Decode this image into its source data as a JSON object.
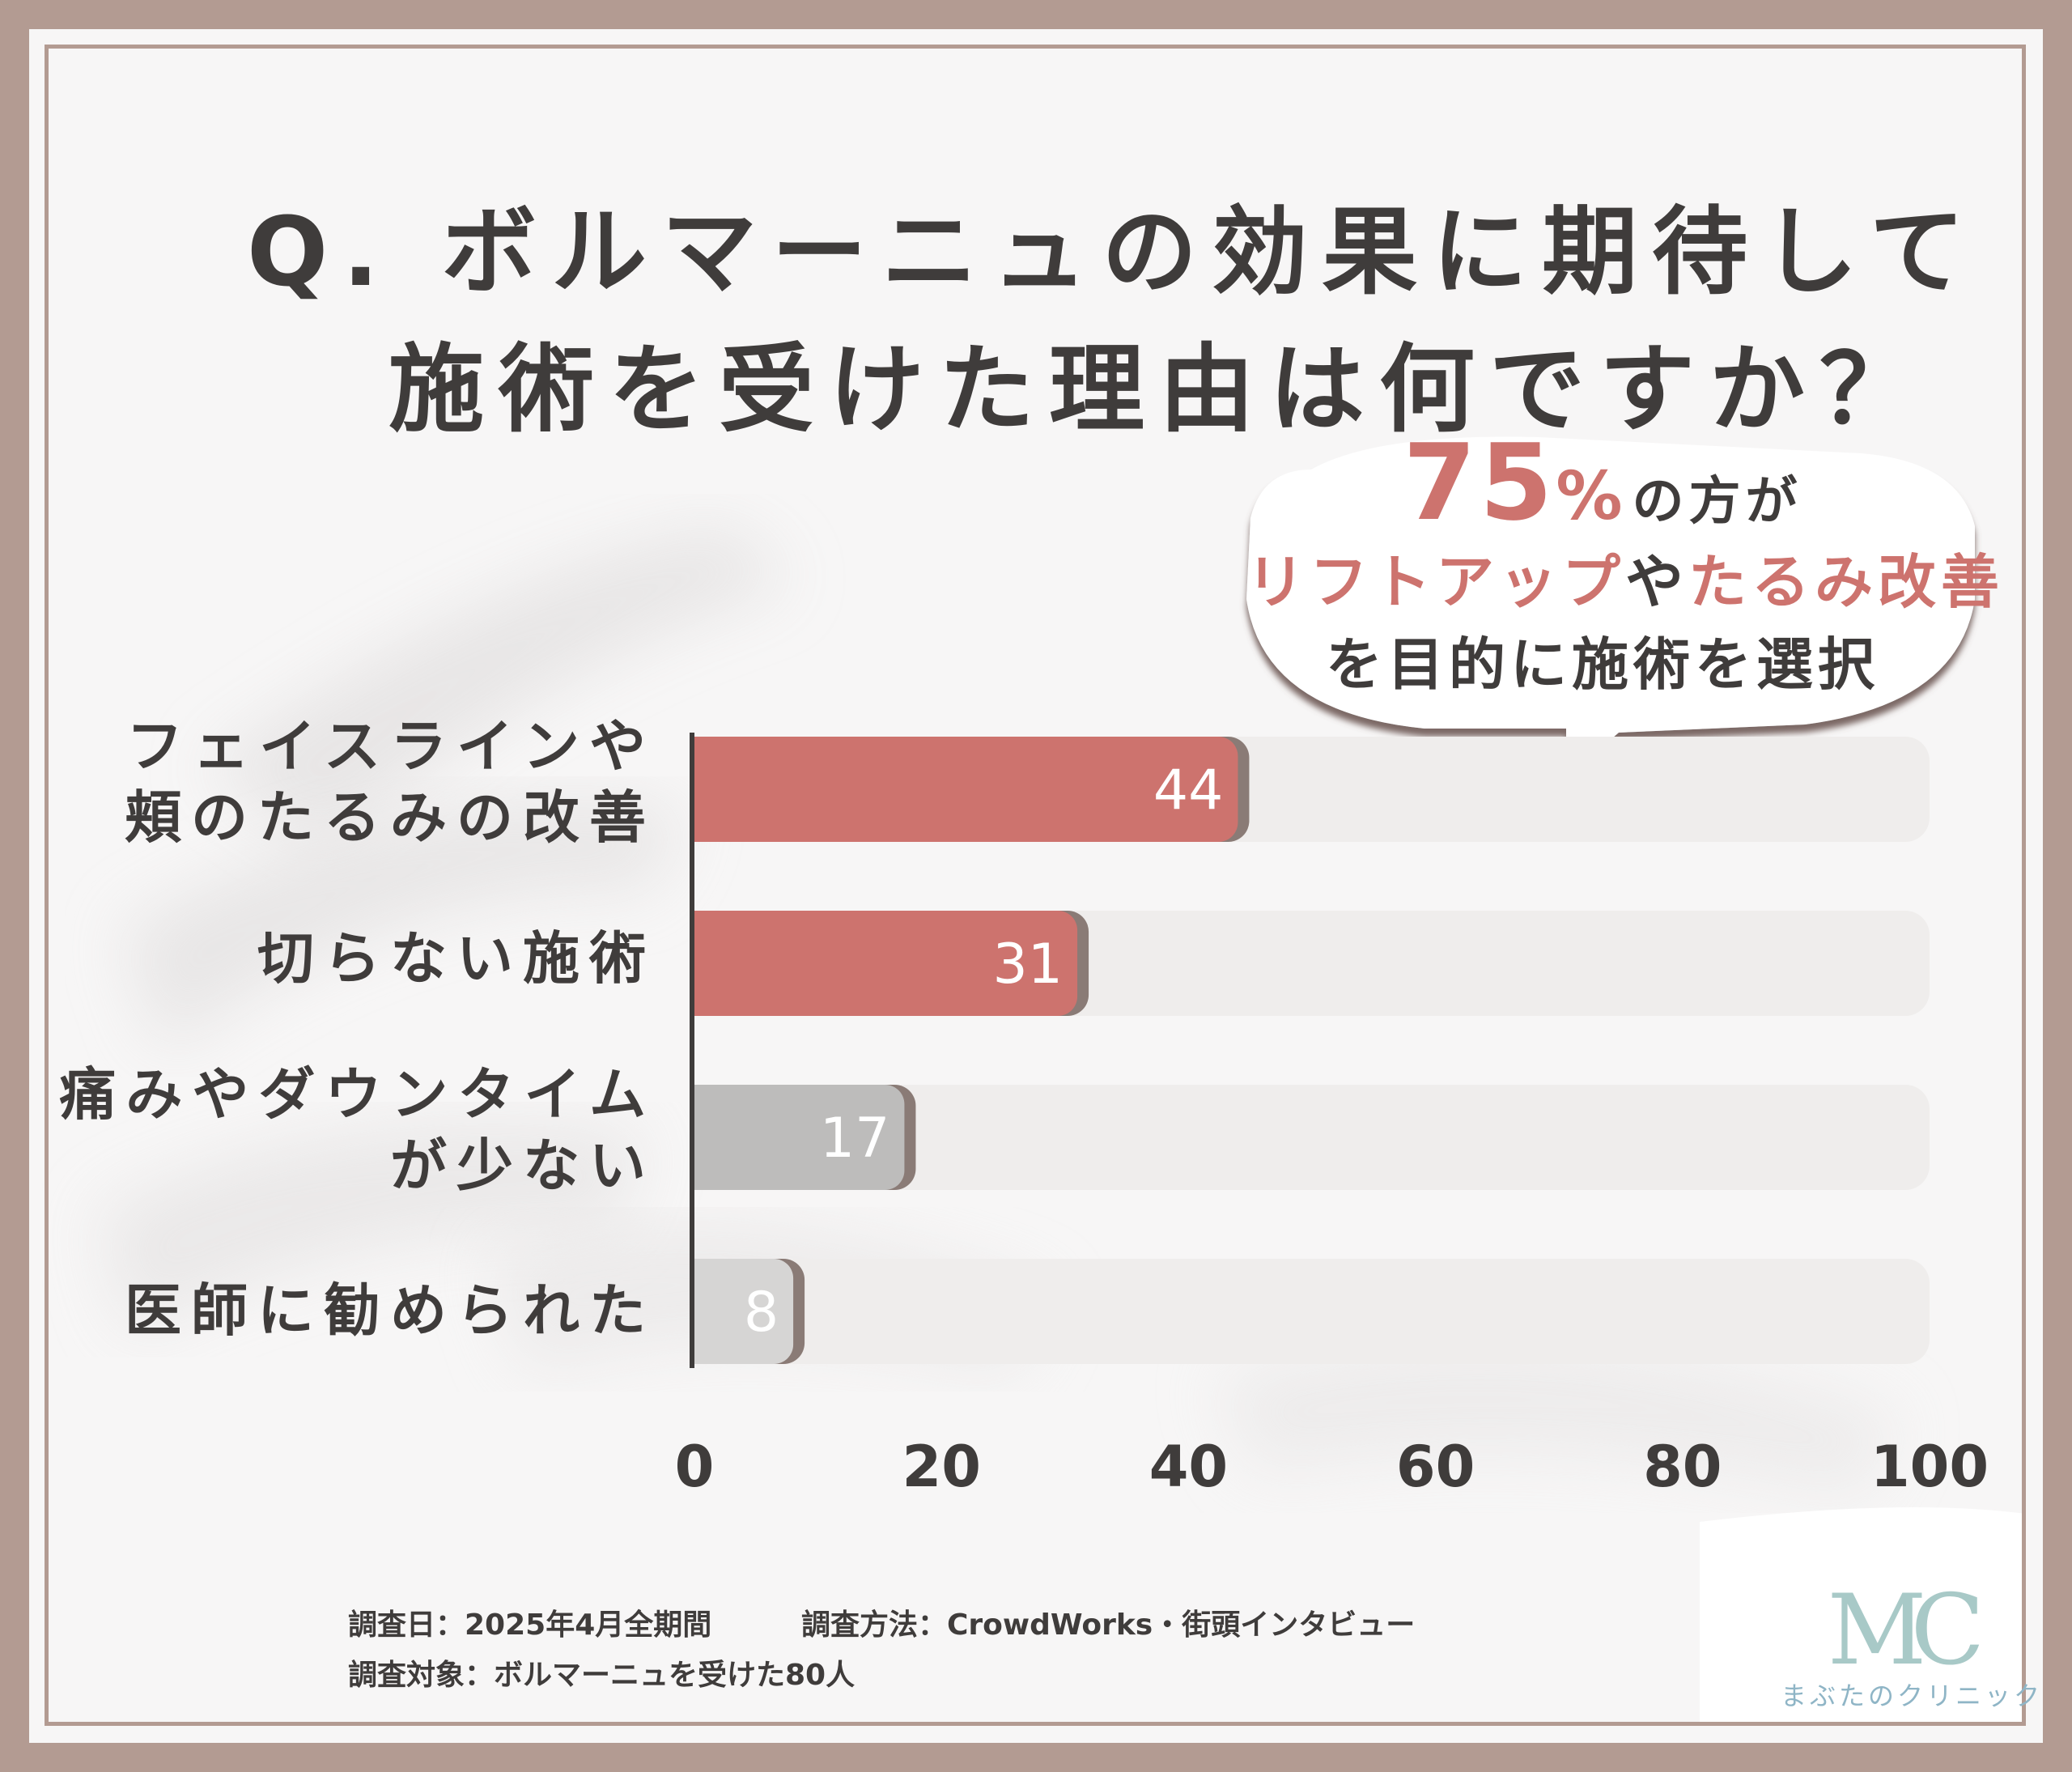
{
  "title": {
    "line1": "Q. ボルマーニュの効果に期待して",
    "line2": "施術を受けた理由は何ですか？"
  },
  "callout": {
    "big_number": "75",
    "percent": "%",
    "line1_suffix": "の方が",
    "line2_a": "リフトアップ",
    "line2_b": "や",
    "line2_c": "たるみ改善",
    "line3": "を目的に施術を選択"
  },
  "colors": {
    "accent": "#cd736e",
    "gray_bar": "#bdbcbb",
    "light_bar": "#d6d5d4",
    "track": "#efedec",
    "frame": "#b39b92",
    "text": "#3f3c3b"
  },
  "chart_data": {
    "type": "bar",
    "orientation": "horizontal",
    "categories": [
      "フェイスラインや\n頬のたるみの改善",
      "切らない施術",
      "痛みやダウンタイム\nが少ない",
      "医師に勧められた"
    ],
    "values": [
      44,
      31,
      17,
      8
    ],
    "value_labels": [
      "44",
      "31",
      "17",
      "8"
    ],
    "xlim": [
      0,
      100
    ],
    "xticks": [
      "0",
      "20",
      "40",
      "60",
      "80",
      "100"
    ],
    "grid": false,
    "title": "Q. ボルマーニュの効果に期待して施術を受けた理由は何ですか？"
  },
  "footnotes": {
    "date": "調査日：2025年4月全期間",
    "method": "調査方法：CrowdWorks・街頭インタビュー",
    "target": "調査対象：ボルマーニュを受けた80人"
  },
  "logo": {
    "mark": "MC",
    "name": "まぶたのクリニック"
  }
}
